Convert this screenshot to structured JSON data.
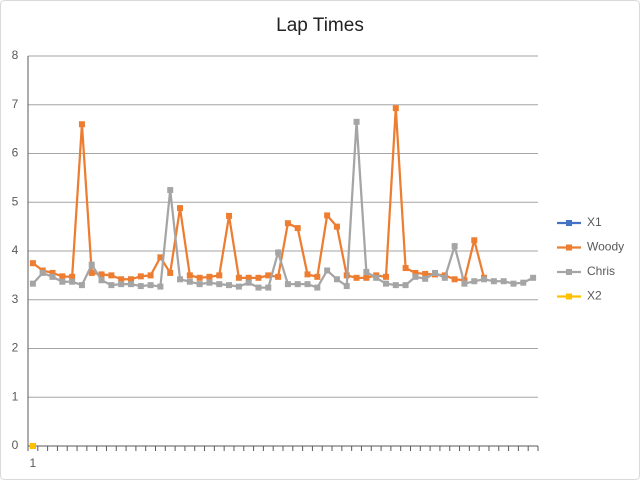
{
  "chart_data": {
    "type": "line",
    "title": "Lap Times",
    "categories": [
      "1",
      null,
      null,
      null,
      null,
      null,
      null,
      null,
      null,
      null,
      null,
      null,
      null,
      null,
      null,
      null,
      null,
      null,
      null,
      null,
      null,
      null,
      null,
      null,
      null,
      null,
      null,
      null,
      null,
      null,
      null,
      null,
      null,
      null,
      null,
      null,
      null,
      null,
      null,
      null,
      null,
      null,
      null,
      null,
      null,
      null,
      null,
      null,
      null,
      null,
      null,
      null
    ],
    "ylim": [
      0,
      8
    ],
    "yticks": [
      0,
      1,
      2,
      3,
      4,
      5,
      6,
      7,
      8
    ],
    "grid": true,
    "legend": "right",
    "series": [
      {
        "name": "X1",
        "color": "#4472c4",
        "values": [
          0,
          null,
          null,
          null,
          null,
          null,
          null,
          null,
          null,
          null,
          null,
          null,
          null,
          null,
          null,
          null,
          null,
          null,
          null,
          null,
          null,
          null,
          null,
          null,
          null,
          null,
          null,
          null,
          null,
          null,
          null,
          null,
          null,
          null,
          null,
          null,
          null,
          null,
          null,
          null,
          null,
          null,
          null,
          null,
          null,
          null,
          null,
          null,
          null,
          null,
          null,
          null
        ]
      },
      {
        "name": "Woody",
        "color": "#ed7d31",
        "values": [
          3.75,
          3.6,
          3.55,
          3.48,
          3.47,
          6.6,
          3.55,
          3.52,
          3.5,
          3.42,
          3.42,
          3.48,
          3.5,
          3.87,
          3.55,
          4.88,
          3.5,
          3.45,
          3.47,
          3.5,
          4.72,
          3.45,
          3.45,
          3.45,
          3.5,
          3.47,
          4.57,
          4.47,
          3.52,
          3.47,
          4.73,
          4.5,
          3.5,
          3.45,
          3.45,
          3.5,
          3.47,
          6.93,
          3.65,
          3.55,
          3.53,
          3.52,
          3.5,
          3.42,
          3.4,
          4.22,
          3.45,
          null,
          null,
          null,
          null,
          null
        ]
      },
      {
        "name": "Chris",
        "color": "#a5a5a5",
        "values": [
          3.33,
          3.55,
          3.47,
          3.37,
          3.37,
          3.3,
          3.72,
          3.4,
          3.3,
          3.32,
          3.32,
          3.28,
          3.3,
          3.27,
          5.25,
          3.42,
          3.37,
          3.32,
          3.35,
          3.32,
          3.3,
          3.27,
          3.35,
          3.25,
          3.25,
          3.97,
          3.32,
          3.32,
          3.32,
          3.25,
          3.6,
          3.42,
          3.28,
          6.65,
          3.57,
          3.45,
          3.33,
          3.3,
          3.3,
          3.47,
          3.43,
          3.55,
          3.45,
          4.1,
          3.33,
          3.38,
          3.42,
          3.38,
          3.38,
          3.33,
          3.35,
          3.45
        ]
      },
      {
        "name": "X2",
        "color": "#ffc000",
        "values": [
          0,
          null,
          null,
          null,
          null,
          null,
          null,
          null,
          null,
          null,
          null,
          null,
          null,
          null,
          null,
          null,
          null,
          null,
          null,
          null,
          null,
          null,
          null,
          null,
          null,
          null,
          null,
          null,
          null,
          null,
          null,
          null,
          null,
          null,
          null,
          null,
          null,
          null,
          null,
          null,
          null,
          null,
          null,
          null,
          null,
          null,
          null,
          null,
          null,
          null,
          null,
          null
        ]
      }
    ]
  }
}
